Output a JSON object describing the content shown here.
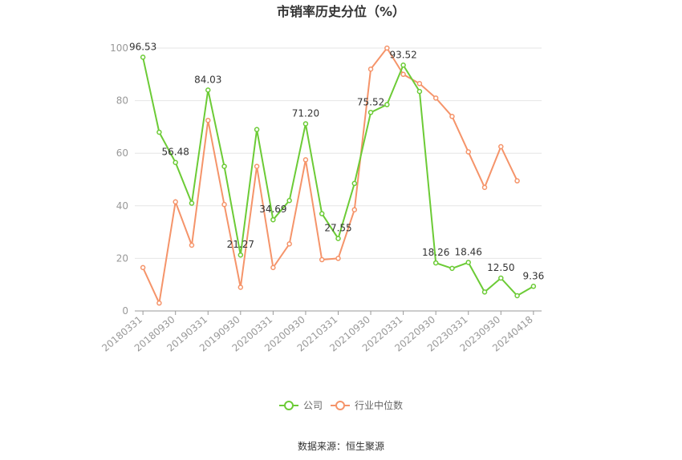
{
  "chart_data": {
    "type": "line",
    "title": "市销率历史分位（%）",
    "x": [
      "20180331",
      "20180630",
      "20180930",
      "20181231",
      "20190331",
      "20190630",
      "20190930",
      "20191231",
      "20200331",
      "20200630",
      "20200930",
      "20201231",
      "20210331",
      "20210630",
      "20210930",
      "20211231",
      "20220331",
      "20220630",
      "20220930",
      "20221231",
      "20230331",
      "20230630",
      "20230930",
      "20231231",
      "20240418"
    ],
    "xtick_labels": [
      "20180331",
      "20180930",
      "20190331",
      "20190930",
      "20200331",
      "20200930",
      "20210331",
      "20210930",
      "20220331",
      "20220930",
      "20230331",
      "20230930",
      "20240418"
    ],
    "yticks": [
      "0",
      "20",
      "40",
      "60",
      "80",
      "100"
    ],
    "ylim": [
      0,
      100
    ],
    "grid": true,
    "legend_position": "bottom",
    "series": [
      {
        "name": "公司",
        "color": "#6ccb36",
        "values": [
          96.53,
          68.0,
          56.48,
          41.0,
          84.03,
          55.0,
          21.27,
          69.0,
          34.69,
          42.0,
          71.2,
          37.0,
          27.55,
          48.5,
          75.52,
          78.5,
          93.52,
          83.5,
          18.26,
          16.2,
          18.46,
          7.2,
          12.5,
          5.8,
          9.36
        ],
        "labels": {
          "0": "96.53",
          "2": "56.48",
          "4": "84.03",
          "6": "21.27",
          "8": "34.69",
          "10": "71.20",
          "12": "27.55",
          "14": "75.52",
          "16": "93.52",
          "18": "18.26",
          "20": "18.46",
          "22": "12.50",
          "24": "9.36"
        }
      },
      {
        "name": "行业中位数",
        "color": "#f5946a",
        "values": [
          16.5,
          3.0,
          41.5,
          25.0,
          72.5,
          40.5,
          9.0,
          55.0,
          16.5,
          25.5,
          57.5,
          19.5,
          20.0,
          38.5,
          92.0,
          100.0,
          90.0,
          86.5,
          81.0,
          74.0,
          60.5,
          47.0,
          62.5,
          49.5,
          null
        ]
      }
    ]
  },
  "footer": {
    "source": "数据来源：恒生聚源"
  }
}
